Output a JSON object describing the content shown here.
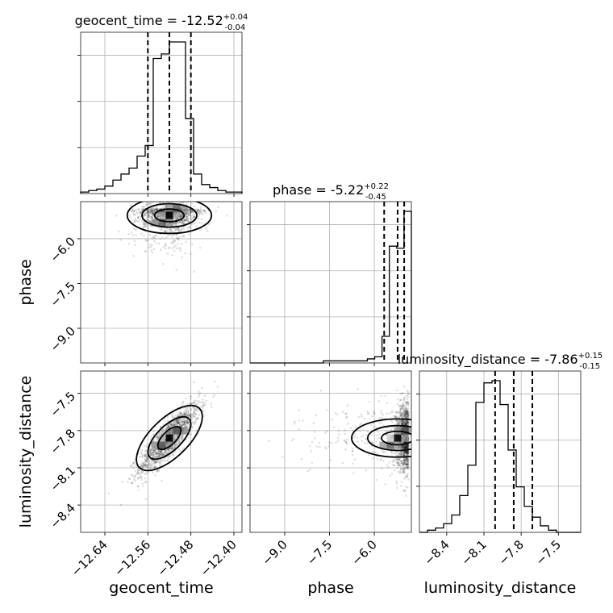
{
  "chart_data": {
    "type": "corner",
    "parameters": [
      "geocent_time",
      "phase",
      "luminosity_distance"
    ],
    "titles": [
      {
        "param": "geocent_time",
        "median": "-12.52",
        "plus": "+0.04",
        "minus": "-0.04"
      },
      {
        "param": "phase",
        "median": "-5.22",
        "plus": "+0.22",
        "minus": "-0.45"
      },
      {
        "param": "luminosity_distance",
        "median": "-7.86",
        "plus": "+0.15",
        "minus": "-0.15"
      }
    ],
    "axis_labels": {
      "x": [
        "geocent_time",
        "phase",
        "luminosity_distance"
      ],
      "y": [
        "phase",
        "luminosity_distance"
      ]
    },
    "ranges": {
      "geocent_time": [
        -12.685,
        -12.385
      ],
      "phase": [
        -10.16,
        -4.76
      ],
      "luminosity_distance": [
        -8.62,
        -7.32
      ]
    },
    "ticks": {
      "geocent_time": [
        -12.64,
        -12.56,
        -12.48,
        -12.4
      ],
      "phase": [
        -9.0,
        -7.5,
        -6.0
      ],
      "luminosity_distance": [
        -8.4,
        -8.1,
        -7.8,
        -7.5
      ]
    },
    "tick_labels": {
      "geocent_time": [
        "−12.64",
        "−12.56",
        "−12.48",
        "−12.40"
      ],
      "phase": [
        "−9.0",
        "−7.5",
        "−6.0"
      ],
      "luminosity_distance": [
        "−8.4",
        "−8.1",
        "−7.8",
        "−7.5"
      ]
    },
    "quantiles": {
      "geocent_time": [
        -12.56,
        -12.52,
        -12.48
      ],
      "phase": [
        -5.67,
        -5.22,
        -5.0
      ],
      "luminosity_distance": [
        -8.01,
        -7.86,
        -7.71
      ]
    },
    "histograms": {
      "geocent_time": {
        "bin_edges": [
          -12.685,
          -12.385
        ],
        "counts": [
          1,
          2,
          3,
          5,
          9,
          13,
          17,
          25,
          32,
          90,
          93,
          101,
          101,
          50,
          13,
          6,
          4,
          2,
          1,
          1
        ]
      },
      "phase": {
        "bin_edges": [
          -10.16,
          -4.76
        ],
        "counts": [
          0,
          0,
          0,
          0,
          0,
          0,
          0,
          0,
          0,
          0,
          1,
          1,
          1,
          1,
          1,
          1,
          2,
          3,
          13,
          57,
          56,
          74
        ]
      },
      "luminosity_distance": {
        "bin_edges": [
          -8.62,
          -7.32
        ],
        "counts": [
          0,
          1,
          2,
          4,
          8,
          17,
          31,
          60,
          69,
          70,
          59,
          38,
          21,
          12,
          7,
          3,
          1,
          0,
          0,
          0
        ]
      }
    },
    "grid": true,
    "points_color": "#000000",
    "line_color": "#000000"
  }
}
